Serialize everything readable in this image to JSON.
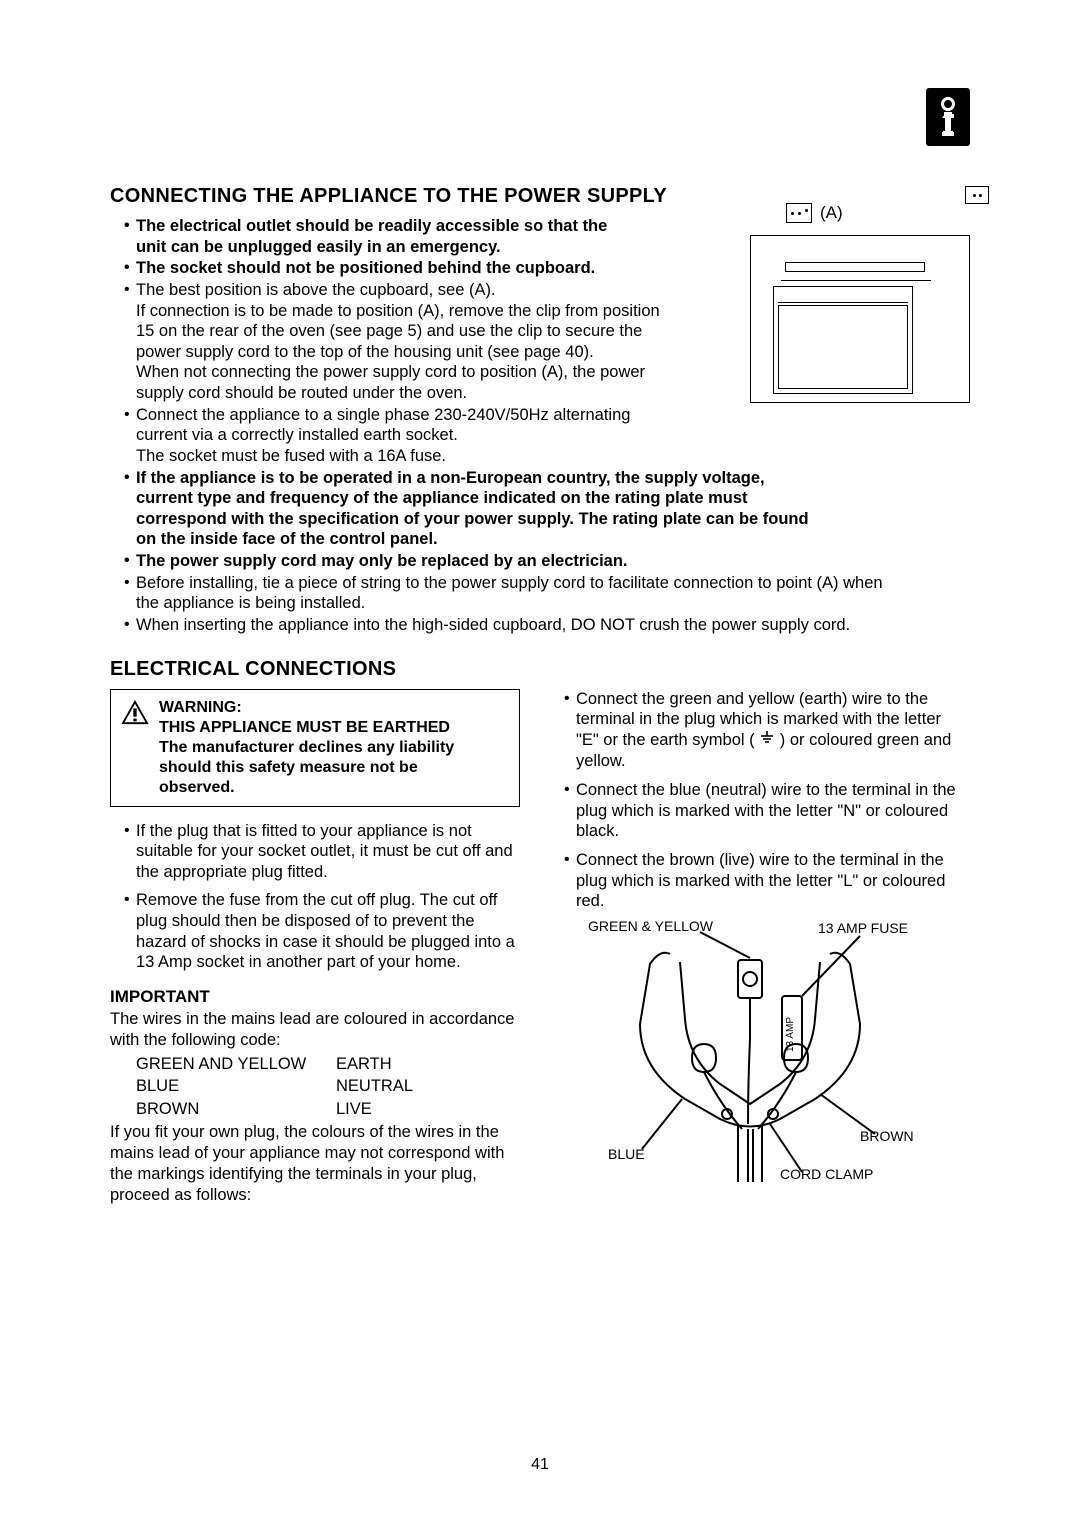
{
  "page_number": "41",
  "corner_icon": "info-icon",
  "section1": {
    "heading": "CONNECTING THE APPLIANCE TO THE POWER SUPPLY",
    "bullets_narrow": [
      {
        "bold": true,
        "lines": [
          "The electrical outlet should be readily accessible so that the",
          "unit can be unplugged easily in an emergency."
        ]
      },
      {
        "bold": true,
        "lines": [
          "The socket should not be positioned behind the cupboard."
        ]
      },
      {
        "bold": false,
        "lines": [
          "The best position is above the cupboard, see (A).",
          "If connection is to be made to position (A), remove the clip from position",
          "15 on the rear of the oven (see page 5) and use the clip to secure the",
          "power supply cord to the top of the housing unit (see page 40).",
          "When not connecting the power supply cord to position (A), the power",
          "supply cord should be routed under the oven."
        ]
      },
      {
        "bold": false,
        "lines": [
          "Connect the appliance to a single phase 230-240V/50Hz alternating",
          "current via a correctly installed earth socket.",
          "The socket must be fused with a 16A fuse."
        ]
      }
    ],
    "bullets_full": [
      {
        "bold": true,
        "lines": [
          "If the appliance is to be operated in a non-European country, the supply voltage,",
          "current type and frequency of the appliance indicated on the rating plate must",
          "correspond with the specification of your power supply. The rating plate can be found",
          "on the inside face of the control panel."
        ]
      },
      {
        "bold": true,
        "lines": [
          "The power supply cord may only be replaced by an electrician."
        ]
      },
      {
        "bold": false,
        "lines": [
          "Before installing, tie a piece of string to the power supply cord to facilitate connection to point (A) when",
          "the appliance is being installed."
        ]
      },
      {
        "bold": false,
        "lines": [
          "When inserting the appliance into the high-sided cupboard, DO NOT crush the power supply cord."
        ]
      }
    ],
    "figure_label_A": "(A)"
  },
  "section2": {
    "heading": "ELECTRICAL CONNECTIONS",
    "warning": {
      "title": "WARNING:",
      "line2": "THIS APPLIANCE MUST BE EARTHED",
      "line3": "The manufacturer declines any liability",
      "line4": "should this safety measure not be",
      "line5": "observed."
    },
    "left_bullets": [
      "If the plug that is fitted to your appliance is not suitable for your socket outlet, it must be cut off and the appropriate plug fitted.",
      "Remove the fuse from the cut off plug. The cut off plug should then be disposed of to prevent the hazard of shocks in case it should be plugged into a 13 Amp socket in another part of your home."
    ],
    "important_label": "IMPORTANT",
    "important_intro": "The wires in the mains lead are coloured in accordance with the following code:",
    "wire_table": [
      {
        "c1": "GREEN AND YELLOW",
        "c2": "EARTH"
      },
      {
        "c1": "BLUE",
        "c2": "NEUTRAL"
      },
      {
        "c1": "BROWN",
        "c2": "LIVE"
      }
    ],
    "important_outro": "If you fit your own plug, the colours of the wires in the mains lead of your appliance may not correspond with the markings identifying the terminals in your plug, proceed as follows:",
    "right_bullets": [
      {
        "pre": "Connect the green and yellow (earth) wire to the terminal in the plug which is marked with the letter \"E\" or the earth symbol (",
        "post": ") or coloured green and yellow."
      },
      {
        "pre": "Connect the blue (neutral) wire to the terminal in the plug which is marked with the letter \"N\" or coloured black.",
        "post": ""
      },
      {
        "pre": "Connect the brown (live) wire to the terminal in the plug which is marked with the letter \"L\" or coloured red.",
        "post": ""
      }
    ],
    "plug_labels": {
      "gy": "GREEN & YELLOW",
      "fuse": "13 AMP FUSE",
      "fuse_vert": "13 AMP",
      "brown": "BROWN",
      "blue": "BLUE",
      "clamp": "CORD CLAMP"
    }
  },
  "colors": {
    "text": "#000000",
    "bg": "#ffffff"
  }
}
